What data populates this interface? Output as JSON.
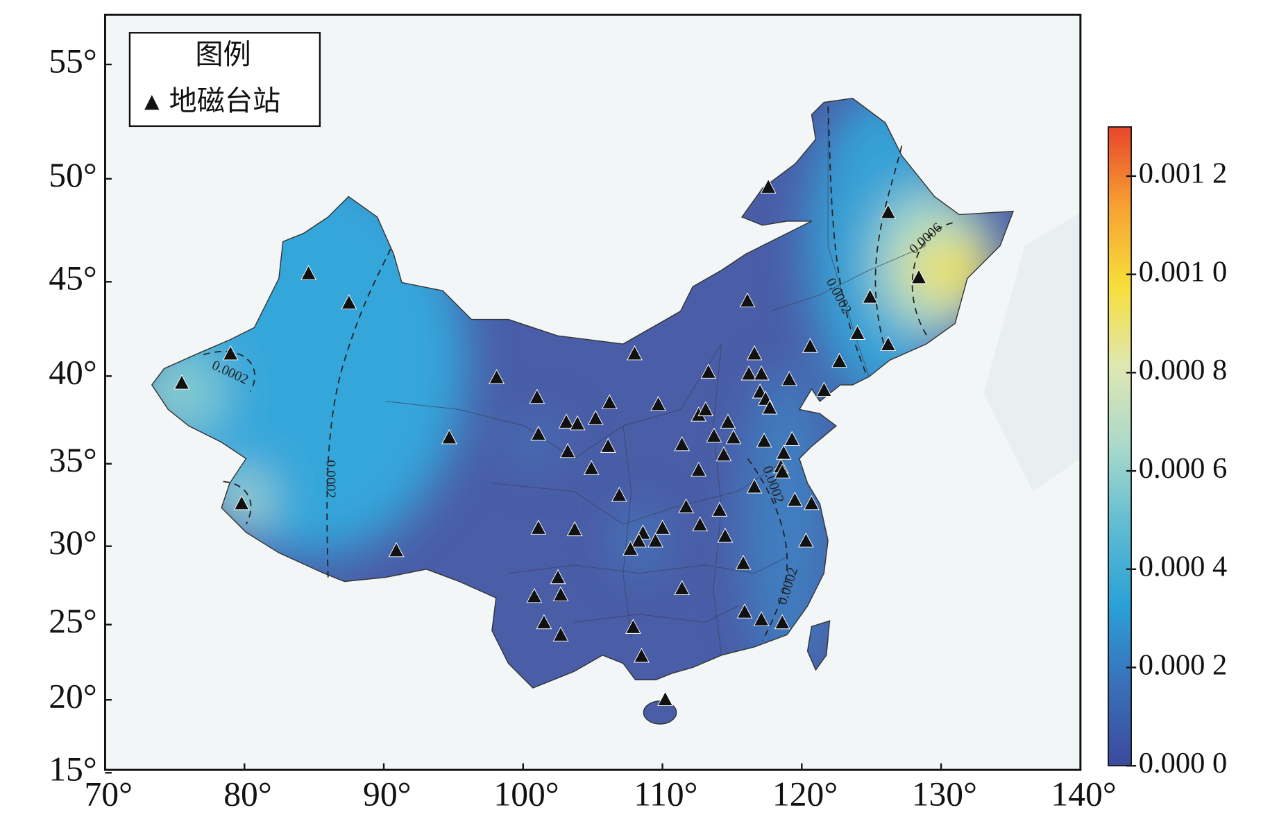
{
  "chart_data": {
    "type": "map",
    "projection": "mercator",
    "xlim": [
      70,
      140
    ],
    "ylim": [
      15.2,
      57
    ],
    "xticks": [
      {
        "value": 70,
        "label": "70°"
      },
      {
        "value": 80,
        "label": "80°"
      },
      {
        "value": 90,
        "label": "90°"
      },
      {
        "value": 100,
        "label": "100°"
      },
      {
        "value": 110,
        "label": "110°"
      },
      {
        "value": 120,
        "label": "120°"
      },
      {
        "value": 130,
        "label": "130°"
      },
      {
        "value": 140,
        "label": "140°"
      }
    ],
    "yticks": [
      {
        "value": 15,
        "label": "15°"
      },
      {
        "value": 20,
        "label": "20°"
      },
      {
        "value": 25,
        "label": "25°"
      },
      {
        "value": 30,
        "label": "30°"
      },
      {
        "value": 35,
        "label": "35°"
      },
      {
        "value": 40,
        "label": "40°"
      },
      {
        "value": 45,
        "label": "45°"
      },
      {
        "value": 50,
        "label": "50°"
      },
      {
        "value": 55,
        "label": "55°"
      }
    ],
    "legend_title": "图例",
    "legend_position": "upper left",
    "series": [
      {
        "name": "地磁台站",
        "color": "#111111",
        "x": [
          117.6,
          84.6,
          87.5,
          79.0,
          75.5,
          79.8,
          90.9,
          94.7,
          98.1,
          101.0,
          101.1,
          103.1,
          103.9,
          105.2,
          103.2,
          106.2,
          106.1,
          104.9,
          106.9,
          108.0,
          109.7,
          101.1,
          103.7,
          108.6,
          110.0,
          108.3,
          109.5,
          107.7,
          100.8,
          102.5,
          102.7,
          101.5,
          102.7,
          107.9,
          108.5,
          110.2,
          111.4,
          111.4,
          112.6,
          112.6,
          113.1,
          113.3,
          111.7,
          112.7,
          113.7,
          114.4,
          114.7,
          115.1,
          114.1,
          114.5,
          115.8,
          115.9,
          116.1,
          116.2,
          116.6,
          117.1,
          117.0,
          117.4,
          117.7,
          119.1,
          117.3,
          118.7,
          119.3,
          118.5,
          118.6,
          116.6,
          119.5,
          120.7,
          120.3,
          117.1,
          118.6,
          120.6,
          121.6,
          122.7,
          124.0,
          124.9,
          126.2,
          128.4,
          126.2
        ],
        "y": [
          49.6,
          45.4,
          43.9,
          41.2,
          39.6,
          32.6,
          29.7,
          36.5,
          39.9,
          38.8,
          36.7,
          37.4,
          37.3,
          37.6,
          35.7,
          38.5,
          36.0,
          34.7,
          33.1,
          41.2,
          38.4,
          31.1,
          31.0,
          30.8,
          31.1,
          30.3,
          30.3,
          29.8,
          26.8,
          28.0,
          26.9,
          25.1,
          24.3,
          24.8,
          22.9,
          20.0,
          27.3,
          36.1,
          34.6,
          37.8,
          38.1,
          40.2,
          32.4,
          31.3,
          36.6,
          35.5,
          37.4,
          36.5,
          32.2,
          30.6,
          28.9,
          25.8,
          44.0,
          40.1,
          41.2,
          40.1,
          39.1,
          38.7,
          38.2,
          39.8,
          36.3,
          35.6,
          36.4,
          34.8,
          34.5,
          33.6,
          32.8,
          32.6,
          30.3,
          25.3,
          25.1,
          41.6,
          39.2,
          40.8,
          42.3,
          44.2,
          41.7,
          45.2,
          48.4
        ]
      }
    ],
    "contour_labels": [
      "0.0002",
      "0.0002",
      "0.0002",
      "0.0006",
      "0.0002",
      "0.0002"
    ],
    "colorbar": {
      "lim": [
        0,
        0.0013
      ],
      "ticks": [
        {
          "value": 0,
          "label": "0.000 0"
        },
        {
          "value": 0.0002,
          "label": "0.000 2"
        },
        {
          "value": 0.0004,
          "label": "0.000 4"
        },
        {
          "value": 0.0006,
          "label": "0.000 6"
        },
        {
          "value": 0.0008,
          "label": "0.000 8"
        },
        {
          "value": 0.001,
          "label": "0.001 0"
        },
        {
          "value": 0.0012,
          "label": "0.001 2"
        }
      ],
      "colors": [
        "#3b4a9c",
        "#3a6fb8",
        "#2aa0d6",
        "#5fbcd2",
        "#a9d9cb",
        "#dfe7b2",
        "#f6df3a",
        "#f7a233",
        "#e8462b"
      ]
    }
  }
}
